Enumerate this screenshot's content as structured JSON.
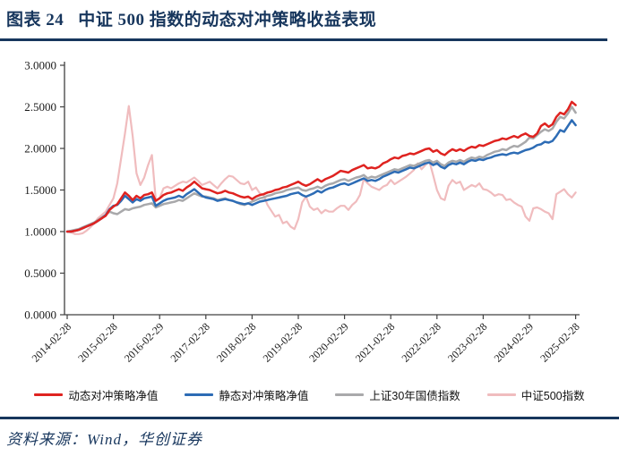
{
  "header": {
    "figure_label": "图表 24",
    "title": "中证 500 指数的动态对冲策略收益表现"
  },
  "source": {
    "text": "资料来源：Wind，华创证券"
  },
  "colors": {
    "accent_navy": "#17365d",
    "dynamic_red": "#df2320",
    "static_blue": "#2d6cb5",
    "bond_gray": "#a9a9ab",
    "csi500_pink": "#f0bcbe",
    "axis": "#404040",
    "tick_text": "#1a1a1a"
  },
  "chart_data": {
    "type": "line",
    "title": "",
    "xlabel": "",
    "ylabel": "",
    "ylim": [
      0,
      3
    ],
    "grid": false,
    "legend_position": "bottom",
    "x_start_month": "2014-02",
    "x_months_per_tick": 12,
    "x_tick_labels": [
      "2014-02-28",
      "2015-02-28",
      "2016-02-29",
      "2017-02-28",
      "2018-02-28",
      "2019-02-28",
      "2020-02-29",
      "2021-02-28",
      "2022-02-28",
      "2023-02-28",
      "2024-02-29",
      "2025-02-28"
    ],
    "y_tick_labels": [
      "0.0000",
      "0.5000",
      "1.0000",
      "1.5000",
      "2.0000",
      "2.5000",
      "3.0000"
    ],
    "y_tick_values": [
      0,
      0.5,
      1.0,
      1.5,
      2.0,
      2.5,
      3.0
    ],
    "series": [
      {
        "name": "动态对冲策略净值",
        "color": "#df2320",
        "stroke_width": 2.5,
        "values": [
          1.0,
          1.0,
          1.01,
          1.02,
          1.04,
          1.06,
          1.08,
          1.1,
          1.13,
          1.16,
          1.19,
          1.26,
          1.3,
          1.33,
          1.4,
          1.47,
          1.43,
          1.38,
          1.43,
          1.4,
          1.44,
          1.45,
          1.47,
          1.37,
          1.4,
          1.44,
          1.46,
          1.47,
          1.49,
          1.51,
          1.49,
          1.53,
          1.56,
          1.6,
          1.56,
          1.52,
          1.51,
          1.5,
          1.48,
          1.46,
          1.47,
          1.49,
          1.47,
          1.46,
          1.44,
          1.42,
          1.41,
          1.42,
          1.39,
          1.42,
          1.44,
          1.45,
          1.47,
          1.48,
          1.5,
          1.51,
          1.53,
          1.54,
          1.56,
          1.58,
          1.6,
          1.57,
          1.55,
          1.57,
          1.6,
          1.63,
          1.6,
          1.63,
          1.65,
          1.67,
          1.7,
          1.73,
          1.72,
          1.71,
          1.74,
          1.76,
          1.78,
          1.8,
          1.76,
          1.77,
          1.76,
          1.78,
          1.82,
          1.84,
          1.87,
          1.89,
          1.88,
          1.91,
          1.92,
          1.94,
          1.93,
          1.95,
          1.97,
          1.99,
          2.0,
          1.96,
          1.98,
          1.94,
          1.92,
          1.96,
          1.99,
          1.97,
          1.99,
          1.97,
          2.0,
          2.02,
          2.01,
          2.04,
          2.03,
          2.05,
          2.07,
          2.09,
          2.1,
          2.12,
          2.11,
          2.13,
          2.15,
          2.13,
          2.16,
          2.18,
          2.15,
          2.14,
          2.18,
          2.27,
          2.3,
          2.26,
          2.29,
          2.38,
          2.43,
          2.41,
          2.47,
          2.56,
          2.52
        ]
      },
      {
        "name": "静态对冲策略净值",
        "color": "#2d6cb5",
        "stroke_width": 2.5,
        "values": [
          1.0,
          1.0,
          1.01,
          1.02,
          1.04,
          1.06,
          1.08,
          1.1,
          1.13,
          1.16,
          1.2,
          1.27,
          1.31,
          1.32,
          1.37,
          1.43,
          1.39,
          1.35,
          1.39,
          1.37,
          1.4,
          1.41,
          1.42,
          1.31,
          1.34,
          1.37,
          1.39,
          1.4,
          1.41,
          1.43,
          1.41,
          1.45,
          1.48,
          1.51,
          1.47,
          1.43,
          1.41,
          1.4,
          1.39,
          1.37,
          1.38,
          1.39,
          1.38,
          1.37,
          1.35,
          1.34,
          1.33,
          1.34,
          1.32,
          1.34,
          1.36,
          1.37,
          1.38,
          1.39,
          1.4,
          1.41,
          1.42,
          1.43,
          1.45,
          1.46,
          1.47,
          1.44,
          1.42,
          1.44,
          1.46,
          1.49,
          1.47,
          1.5,
          1.52,
          1.53,
          1.55,
          1.57,
          1.58,
          1.56,
          1.58,
          1.6,
          1.62,
          1.64,
          1.61,
          1.62,
          1.61,
          1.63,
          1.66,
          1.68,
          1.7,
          1.72,
          1.71,
          1.73,
          1.75,
          1.77,
          1.76,
          1.78,
          1.8,
          1.82,
          1.83,
          1.8,
          1.82,
          1.78,
          1.76,
          1.8,
          1.82,
          1.81,
          1.83,
          1.81,
          1.84,
          1.86,
          1.85,
          1.87,
          1.86,
          1.88,
          1.89,
          1.91,
          1.92,
          1.93,
          1.92,
          1.94,
          1.95,
          1.94,
          1.96,
          1.98,
          1.99,
          2.01,
          2.04,
          2.05,
          2.08,
          2.07,
          2.09,
          2.15,
          2.22,
          2.2,
          2.27,
          2.34,
          2.28
        ]
      },
      {
        "name": "上证30年国债指数",
        "color": "#a9a9ab",
        "stroke_width": 2.5,
        "values": [
          1.0,
          1.01,
          1.02,
          1.03,
          1.05,
          1.07,
          1.09,
          1.11,
          1.14,
          1.17,
          1.2,
          1.24,
          1.22,
          1.21,
          1.24,
          1.27,
          1.26,
          1.28,
          1.29,
          1.3,
          1.32,
          1.33,
          1.34,
          1.29,
          1.31,
          1.33,
          1.34,
          1.35,
          1.36,
          1.38,
          1.37,
          1.4,
          1.43,
          1.46,
          1.44,
          1.42,
          1.42,
          1.41,
          1.4,
          1.38,
          1.39,
          1.4,
          1.38,
          1.37,
          1.35,
          1.33,
          1.32,
          1.34,
          1.36,
          1.38,
          1.4,
          1.41,
          1.43,
          1.44,
          1.46,
          1.47,
          1.48,
          1.5,
          1.51,
          1.52,
          1.53,
          1.5,
          1.49,
          1.51,
          1.52,
          1.54,
          1.52,
          1.55,
          1.57,
          1.58,
          1.6,
          1.62,
          1.63,
          1.61,
          1.63,
          1.65,
          1.66,
          1.68,
          1.64,
          1.66,
          1.65,
          1.67,
          1.69,
          1.71,
          1.73,
          1.75,
          1.74,
          1.76,
          1.78,
          1.8,
          1.79,
          1.81,
          1.83,
          1.85,
          1.86,
          1.83,
          1.85,
          1.81,
          1.79,
          1.83,
          1.85,
          1.84,
          1.86,
          1.84,
          1.87,
          1.89,
          1.88,
          1.9,
          1.89,
          1.92,
          1.94,
          1.96,
          1.97,
          1.99,
          1.98,
          2.01,
          2.03,
          2.02,
          2.05,
          2.08,
          2.13,
          2.12,
          2.16,
          2.2,
          2.23,
          2.21,
          2.24,
          2.32,
          2.38,
          2.36,
          2.42,
          2.5,
          2.43
        ]
      },
      {
        "name": "中证500指数",
        "color": "#f0bcbe",
        "stroke_width": 2.2,
        "values": [
          1.0,
          0.99,
          0.97,
          0.97,
          0.98,
          1.01,
          1.05,
          1.1,
          1.16,
          1.2,
          1.24,
          1.32,
          1.4,
          1.58,
          1.88,
          2.18,
          2.51,
          2.15,
          1.7,
          1.56,
          1.65,
          1.8,
          1.92,
          1.38,
          1.4,
          1.52,
          1.54,
          1.52,
          1.55,
          1.58,
          1.6,
          1.59,
          1.62,
          1.65,
          1.61,
          1.56,
          1.58,
          1.6,
          1.56,
          1.52,
          1.58,
          1.63,
          1.67,
          1.66,
          1.62,
          1.58,
          1.57,
          1.6,
          1.5,
          1.53,
          1.46,
          1.44,
          1.32,
          1.25,
          1.18,
          1.2,
          1.1,
          1.12,
          1.06,
          1.03,
          1.15,
          1.35,
          1.42,
          1.3,
          1.26,
          1.28,
          1.22,
          1.26,
          1.24,
          1.24,
          1.28,
          1.31,
          1.31,
          1.26,
          1.32,
          1.36,
          1.44,
          1.63,
          1.58,
          1.54,
          1.52,
          1.5,
          1.54,
          1.56,
          1.62,
          1.57,
          1.6,
          1.63,
          1.66,
          1.7,
          1.74,
          1.82,
          1.75,
          1.8,
          1.85,
          1.68,
          1.5,
          1.4,
          1.38,
          1.55,
          1.62,
          1.58,
          1.6,
          1.5,
          1.53,
          1.56,
          1.54,
          1.58,
          1.51,
          1.5,
          1.47,
          1.43,
          1.45,
          1.44,
          1.38,
          1.39,
          1.35,
          1.32,
          1.3,
          1.18,
          1.13,
          1.28,
          1.29,
          1.27,
          1.24,
          1.22,
          1.15,
          1.45,
          1.48,
          1.51,
          1.45,
          1.41,
          1.47
        ]
      }
    ]
  }
}
